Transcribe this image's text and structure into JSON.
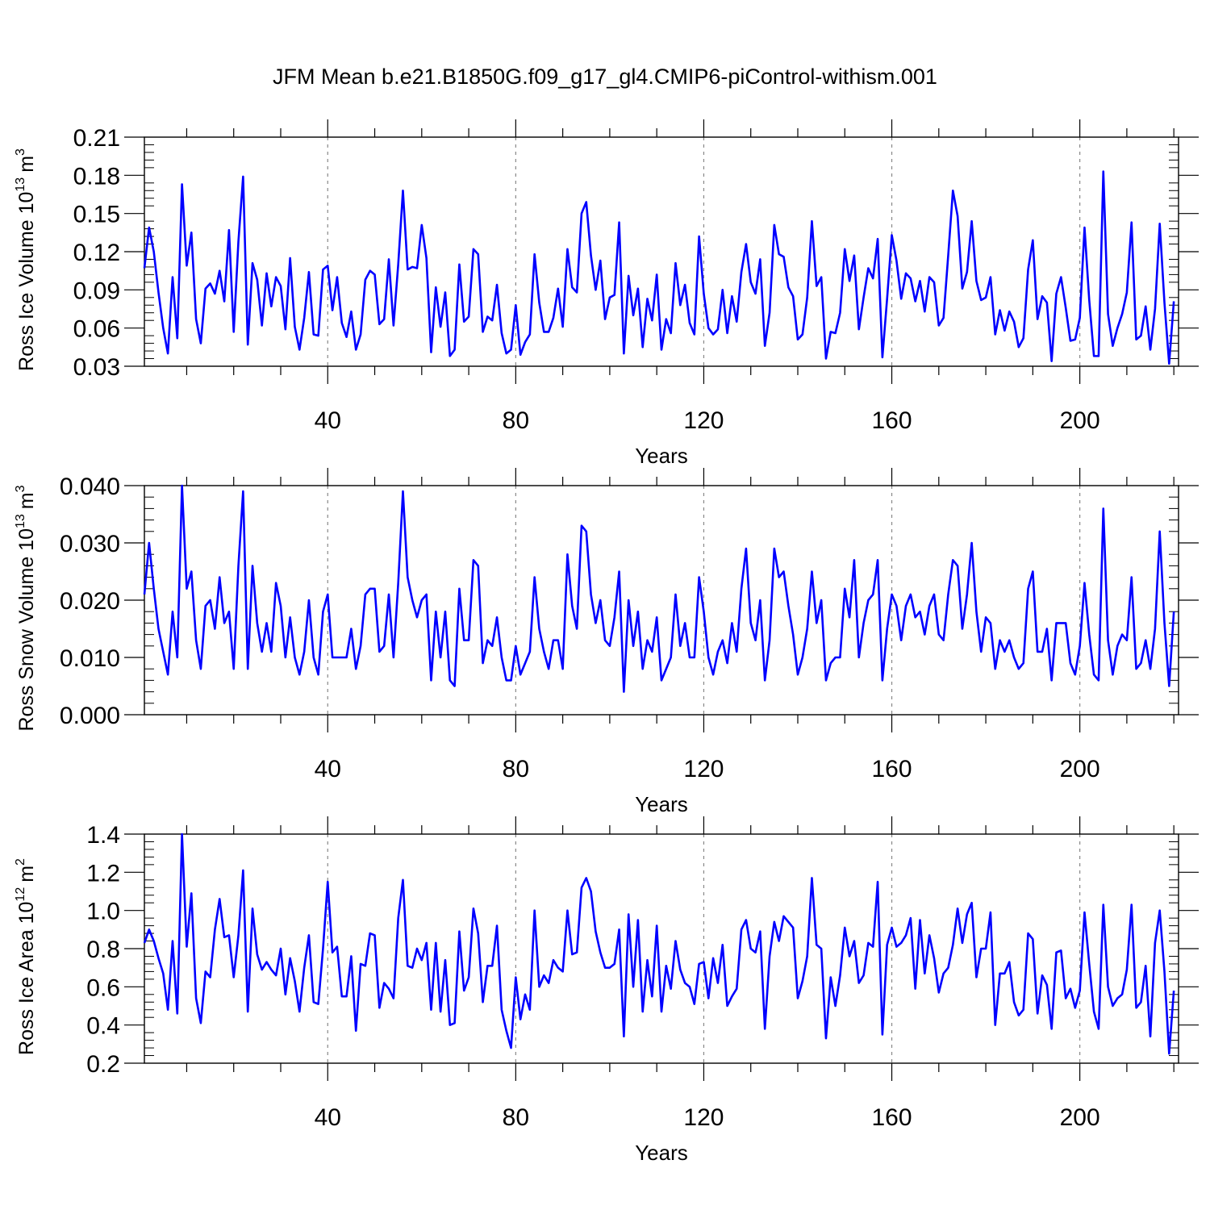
{
  "title": "JFM Mean b.e21.B1850G.f09_g17_gl4.CMIP6-piControl-withism.001",
  "line_color": "#0000ff",
  "chart_data": [
    {
      "type": "line",
      "id": "ice-volume",
      "title": "",
      "xlabel": "Years",
      "ylabel": "Ross Ice Volume 10",
      "ylabel_exp": "13",
      "ylabel_unit": "m",
      "ylabel_unit_exp": "3",
      "xlim": [
        1,
        221
      ],
      "ylim": [
        0.03,
        0.21
      ],
      "xticks": [
        "40",
        "80",
        "120",
        "160",
        "200"
      ],
      "yticks": [
        "0.03",
        "0.06",
        "0.09",
        "0.12",
        "0.15",
        "0.18",
        "0.21"
      ],
      "x_start": 1,
      "series": [
        {
          "name": "Ross Ice Volume",
          "values": [
            0.107,
            0.139,
            0.12,
            0.088,
            0.06,
            0.04,
            0.1,
            0.052,
            0.173,
            0.109,
            0.135,
            0.067,
            0.048,
            0.091,
            0.095,
            0.087,
            0.105,
            0.081,
            0.137,
            0.057,
            0.128,
            0.179,
            0.047,
            0.111,
            0.098,
            0.062,
            0.103,
            0.077,
            0.1,
            0.093,
            0.059,
            0.115,
            0.061,
            0.043,
            0.068,
            0.104,
            0.055,
            0.054,
            0.106,
            0.109,
            0.074,
            0.1,
            0.064,
            0.053,
            0.073,
            0.043,
            0.055,
            0.098,
            0.105,
            0.102,
            0.063,
            0.067,
            0.114,
            0.062,
            0.11,
            0.168,
            0.106,
            0.108,
            0.107,
            0.141,
            0.115,
            0.041,
            0.092,
            0.061,
            0.088,
            0.038,
            0.043,
            0.11,
            0.065,
            0.069,
            0.122,
            0.118,
            0.057,
            0.069,
            0.066,
            0.094,
            0.056,
            0.04,
            0.043,
            0.078,
            0.039,
            0.049,
            0.055,
            0.118,
            0.08,
            0.057,
            0.057,
            0.068,
            0.091,
            0.061,
            0.122,
            0.092,
            0.088,
            0.15,
            0.159,
            0.117,
            0.09,
            0.113,
            0.067,
            0.084,
            0.086,
            0.143,
            0.04,
            0.101,
            0.07,
            0.091,
            0.045,
            0.083,
            0.066,
            0.102,
            0.043,
            0.067,
            0.056,
            0.111,
            0.078,
            0.094,
            0.064,
            0.055,
            0.132,
            0.087,
            0.06,
            0.055,
            0.059,
            0.09,
            0.056,
            0.085,
            0.065,
            0.104,
            0.126,
            0.096,
            0.087,
            0.114,
            0.046,
            0.072,
            0.141,
            0.118,
            0.116,
            0.092,
            0.085,
            0.051,
            0.055,
            0.084,
            0.144,
            0.093,
            0.1,
            0.036,
            0.057,
            0.056,
            0.072,
            0.122,
            0.097,
            0.117,
            0.059,
            0.084,
            0.107,
            0.099,
            0.13,
            0.037,
            0.083,
            0.133,
            0.113,
            0.083,
            0.103,
            0.099,
            0.081,
            0.097,
            0.073,
            0.1,
            0.096,
            0.062,
            0.068,
            0.117,
            0.168,
            0.148,
            0.091,
            0.104,
            0.144,
            0.097,
            0.082,
            0.084,
            0.1,
            0.055,
            0.074,
            0.058,
            0.073,
            0.065,
            0.045,
            0.052,
            0.106,
            0.129,
            0.067,
            0.085,
            0.08,
            0.034,
            0.087,
            0.1,
            0.076,
            0.05,
            0.051,
            0.068,
            0.139,
            0.082,
            0.038,
            0.038,
            0.183,
            0.071,
            0.046,
            0.06,
            0.071,
            0.088,
            0.143,
            0.051,
            0.054,
            0.077,
            0.043,
            0.075,
            0.142,
            0.08,
            0.032,
            0.081
          ]
        }
      ]
    },
    {
      "type": "line",
      "id": "snow-volume",
      "title": "",
      "xlabel": "Years",
      "ylabel": "Ross Snow Volume 10",
      "ylabel_exp": "13",
      "ylabel_unit": "m",
      "ylabel_unit_exp": "3",
      "xlim": [
        1,
        221
      ],
      "ylim": [
        0.0,
        0.04
      ],
      "xticks": [
        "40",
        "80",
        "120",
        "160",
        "200"
      ],
      "yticks": [
        "0.000",
        "0.010",
        "0.020",
        "0.030",
        "0.040"
      ],
      "x_start": 1,
      "series": [
        {
          "name": "Ross Snow Volume",
          "values": [
            0.021,
            0.03,
            0.022,
            0.015,
            0.011,
            0.007,
            0.018,
            0.01,
            0.04,
            0.022,
            0.025,
            0.013,
            0.008,
            0.019,
            0.02,
            0.015,
            0.024,
            0.016,
            0.018,
            0.008,
            0.026,
            0.039,
            0.008,
            0.026,
            0.016,
            0.011,
            0.016,
            0.011,
            0.023,
            0.019,
            0.01,
            0.017,
            0.01,
            0.007,
            0.011,
            0.02,
            0.01,
            0.007,
            0.018,
            0.021,
            0.01,
            0.01,
            0.01,
            0.01,
            0.015,
            0.008,
            0.012,
            0.021,
            0.022,
            0.022,
            0.011,
            0.012,
            0.021,
            0.01,
            0.023,
            0.039,
            0.024,
            0.02,
            0.017,
            0.02,
            0.021,
            0.006,
            0.018,
            0.01,
            0.018,
            0.006,
            0.005,
            0.022,
            0.013,
            0.013,
            0.027,
            0.026,
            0.009,
            0.013,
            0.012,
            0.017,
            0.01,
            0.006,
            0.006,
            0.012,
            0.007,
            0.009,
            0.011,
            0.024,
            0.015,
            0.011,
            0.008,
            0.013,
            0.013,
            0.008,
            0.028,
            0.019,
            0.015,
            0.033,
            0.032,
            0.021,
            0.016,
            0.02,
            0.013,
            0.012,
            0.017,
            0.025,
            0.004,
            0.02,
            0.012,
            0.018,
            0.008,
            0.013,
            0.011,
            0.017,
            0.006,
            0.008,
            0.01,
            0.021,
            0.012,
            0.016,
            0.01,
            0.01,
            0.024,
            0.018,
            0.01,
            0.007,
            0.011,
            0.013,
            0.009,
            0.016,
            0.011,
            0.022,
            0.029,
            0.016,
            0.013,
            0.02,
            0.006,
            0.013,
            0.029,
            0.024,
            0.025,
            0.019,
            0.014,
            0.007,
            0.01,
            0.015,
            0.025,
            0.016,
            0.02,
            0.006,
            0.009,
            0.01,
            0.01,
            0.022,
            0.017,
            0.027,
            0.01,
            0.016,
            0.02,
            0.021,
            0.027,
            0.006,
            0.015,
            0.021,
            0.019,
            0.013,
            0.019,
            0.021,
            0.017,
            0.018,
            0.014,
            0.019,
            0.021,
            0.014,
            0.013,
            0.021,
            0.027,
            0.026,
            0.015,
            0.021,
            0.03,
            0.018,
            0.011,
            0.017,
            0.016,
            0.008,
            0.013,
            0.011,
            0.013,
            0.01,
            0.008,
            0.009,
            0.022,
            0.025,
            0.011,
            0.011,
            0.015,
            0.006,
            0.016,
            0.016,
            0.016,
            0.009,
            0.007,
            0.012,
            0.023,
            0.014,
            0.007,
            0.006,
            0.036,
            0.013,
            0.007,
            0.012,
            0.014,
            0.013,
            0.024,
            0.008,
            0.009,
            0.013,
            0.008,
            0.015,
            0.032,
            0.016,
            0.005,
            0.018
          ]
        }
      ]
    },
    {
      "type": "line",
      "id": "ice-area",
      "title": "",
      "xlabel": "Years",
      "ylabel": "Ross Ice Area 10",
      "ylabel_exp": "12",
      "ylabel_unit": "m",
      "ylabel_unit_exp": "2",
      "xlim": [
        1,
        221
      ],
      "ylim": [
        0.2,
        1.4
      ],
      "xticks": [
        "40",
        "80",
        "120",
        "160",
        "200"
      ],
      "yticks": [
        "0.2",
        "0.4",
        "0.6",
        "0.8",
        "1.0",
        "1.2",
        "1.4"
      ],
      "x_start": 1,
      "series": [
        {
          "name": "Ross Ice Area",
          "values": [
            0.83,
            0.9,
            0.84,
            0.75,
            0.67,
            0.48,
            0.84,
            0.46,
            1.4,
            0.81,
            1.09,
            0.54,
            0.41,
            0.68,
            0.65,
            0.9,
            1.06,
            0.86,
            0.87,
            0.65,
            0.87,
            1.21,
            0.47,
            1.01,
            0.77,
            0.69,
            0.73,
            0.69,
            0.66,
            0.8,
            0.56,
            0.75,
            0.63,
            0.47,
            0.7,
            0.87,
            0.52,
            0.51,
            0.8,
            1.15,
            0.78,
            0.81,
            0.55,
            0.55,
            0.76,
            0.37,
            0.72,
            0.71,
            0.88,
            0.87,
            0.49,
            0.62,
            0.59,
            0.54,
            0.96,
            1.16,
            0.71,
            0.7,
            0.8,
            0.74,
            0.83,
            0.48,
            0.83,
            0.47,
            0.74,
            0.4,
            0.41,
            0.89,
            0.58,
            0.65,
            1.01,
            0.88,
            0.52,
            0.71,
            0.71,
            0.92,
            0.48,
            0.37,
            0.28,
            0.65,
            0.43,
            0.56,
            0.48,
            1.0,
            0.6,
            0.66,
            0.62,
            0.74,
            0.7,
            0.68,
            1.0,
            0.77,
            0.78,
            1.12,
            1.17,
            1.1,
            0.89,
            0.78,
            0.7,
            0.7,
            0.72,
            0.9,
            0.34,
            0.98,
            0.6,
            0.95,
            0.47,
            0.74,
            0.55,
            0.92,
            0.47,
            0.71,
            0.59,
            0.84,
            0.69,
            0.62,
            0.6,
            0.51,
            0.72,
            0.73,
            0.54,
            0.75,
            0.62,
            0.82,
            0.5,
            0.55,
            0.59,
            0.9,
            0.95,
            0.8,
            0.78,
            0.89,
            0.38,
            0.76,
            0.94,
            0.84,
            0.97,
            0.94,
            0.91,
            0.54,
            0.63,
            0.76,
            1.17,
            0.82,
            0.8,
            0.33,
            0.65,
            0.5,
            0.66,
            0.91,
            0.76,
            0.84,
            0.62,
            0.66,
            0.83,
            0.81,
            1.15,
            0.35,
            0.82,
            0.91,
            0.81,
            0.83,
            0.87,
            0.96,
            0.59,
            0.95,
            0.67,
            0.87,
            0.75,
            0.57,
            0.67,
            0.7,
            0.82,
            1.01,
            0.83,
            0.98,
            1.04,
            0.65,
            0.8,
            0.8,
            0.99,
            0.4,
            0.67,
            0.67,
            0.73,
            0.52,
            0.45,
            0.48,
            0.88,
            0.85,
            0.46,
            0.66,
            0.61,
            0.38,
            0.78,
            0.79,
            0.54,
            0.59,
            0.49,
            0.58,
            0.99,
            0.72,
            0.47,
            0.38,
            1.03,
            0.6,
            0.5,
            0.54,
            0.56,
            0.69,
            1.03,
            0.49,
            0.52,
            0.71,
            0.34,
            0.83,
            1.0,
            0.68,
            0.25,
            0.58
          ]
        }
      ]
    }
  ]
}
